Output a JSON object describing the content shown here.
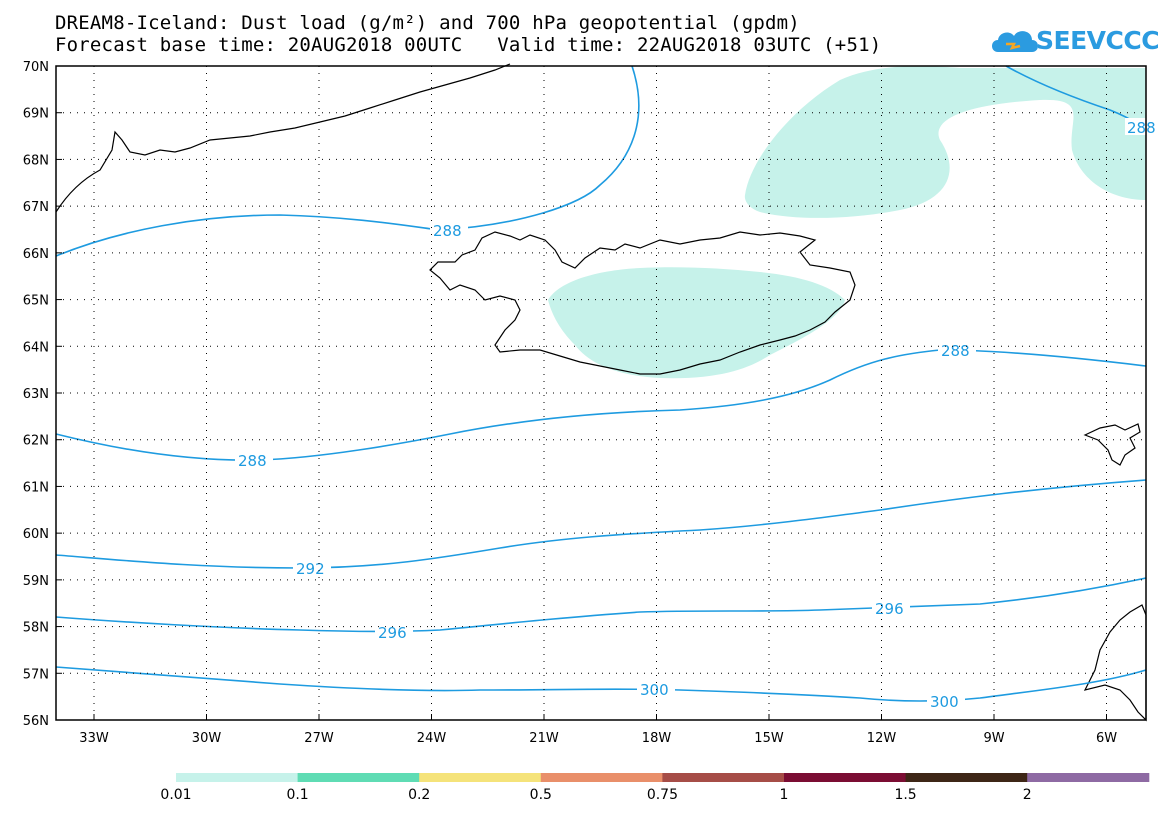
{
  "header": {
    "title_line1": "DREAM8-Iceland: Dust load (g/m²) and 700 hPa geopotential (gpdm)",
    "title_line2": "Forecast base time: 20AUG2018 00UTC   Valid time: 22AUG2018 03UTC (+51)"
  },
  "logo": {
    "text": "SEEVCCC",
    "icon": "cloud-icon",
    "color": "#2b9be0"
  },
  "map": {
    "region": "Iceland",
    "lat_labels": [
      "70N",
      "69N",
      "68N",
      "67N",
      "66N",
      "65N",
      "64N",
      "63N",
      "62N",
      "61N",
      "60N",
      "59N",
      "58N",
      "57N",
      "56N"
    ],
    "lon_labels": [
      "33W",
      "30W",
      "27W",
      "24W",
      "21W",
      "18W",
      "15W",
      "12W",
      "9W",
      "6W"
    ],
    "contour_color": "#1e9be0",
    "contour_labels": [
      {
        "value": "288"
      },
      {
        "value": "288"
      },
      {
        "value": "288"
      },
      {
        "value": "288"
      },
      {
        "value": "292"
      },
      {
        "value": "296"
      },
      {
        "value": "296"
      },
      {
        "value": "300"
      },
      {
        "value": "300"
      }
    ],
    "dust_fill_color": "#c6f2ea"
  },
  "colorbar": {
    "labels": [
      "0.01",
      "0.1",
      "0.2",
      "0.5",
      "0.75",
      "1",
      "1.5",
      "2"
    ],
    "colors": [
      "#c6f2ea",
      "#5fdcb4",
      "#f5e37a",
      "#e98f6a",
      "#a64d47",
      "#7b0d33",
      "#3e2616",
      "#8e6aa3"
    ]
  }
}
